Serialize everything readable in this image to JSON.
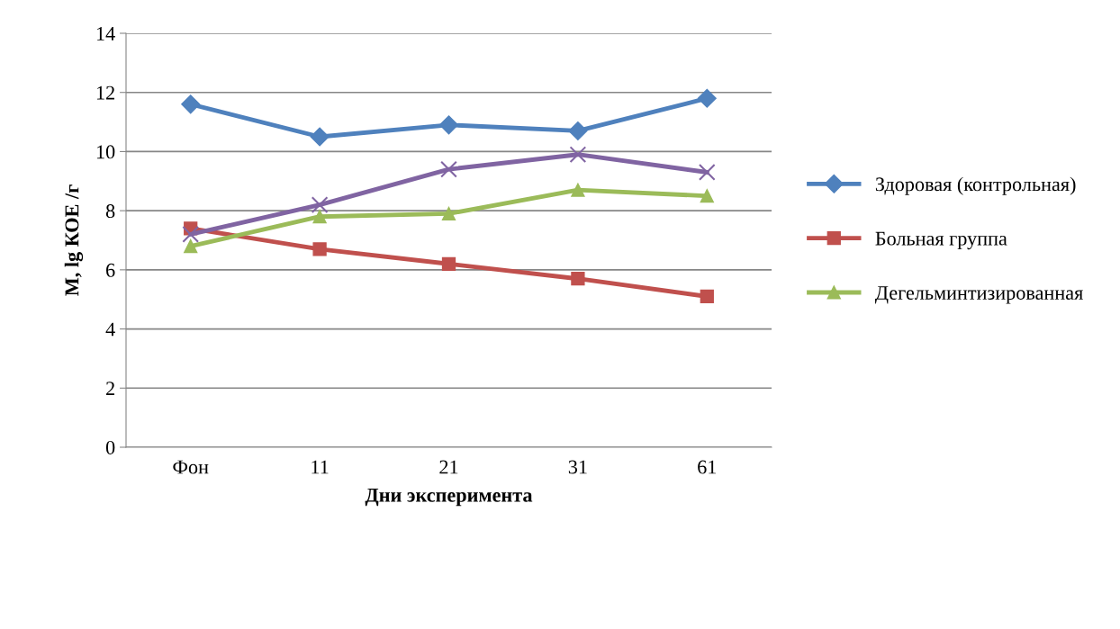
{
  "chart_data": {
    "type": "line",
    "xlabel": "Дни эксперимента",
    "ylabel": "M, lg КОЕ /г",
    "categories": [
      "Фон",
      "11",
      "21",
      "31",
      "61"
    ],
    "series": [
      {
        "name": "Здоровая (контрольная)",
        "color": "#4f81bd",
        "marker": "diamond",
        "values": [
          11.6,
          10.5,
          10.9,
          10.7,
          11.8
        ]
      },
      {
        "name": "Больная группа",
        "color": "#c0504d",
        "marker": "square",
        "values": [
          7.4,
          6.7,
          6.2,
          5.7,
          5.1
        ]
      },
      {
        "name": "Дегельминтизированная",
        "color": "#9bbb59",
        "marker": "triangle",
        "values": [
          6.8,
          7.8,
          7.9,
          8.7,
          8.5
        ]
      },
      {
        "color": "#8064a2",
        "marker": "cross",
        "values": [
          7.2,
          8.2,
          9.4,
          9.9,
          9.3
        ]
      }
    ],
    "ylim": [
      0,
      14
    ],
    "yticks": [
      0,
      2,
      4,
      6,
      8,
      10,
      12,
      14
    ],
    "grid": "y",
    "legend": "right",
    "line_style": "solid"
  }
}
